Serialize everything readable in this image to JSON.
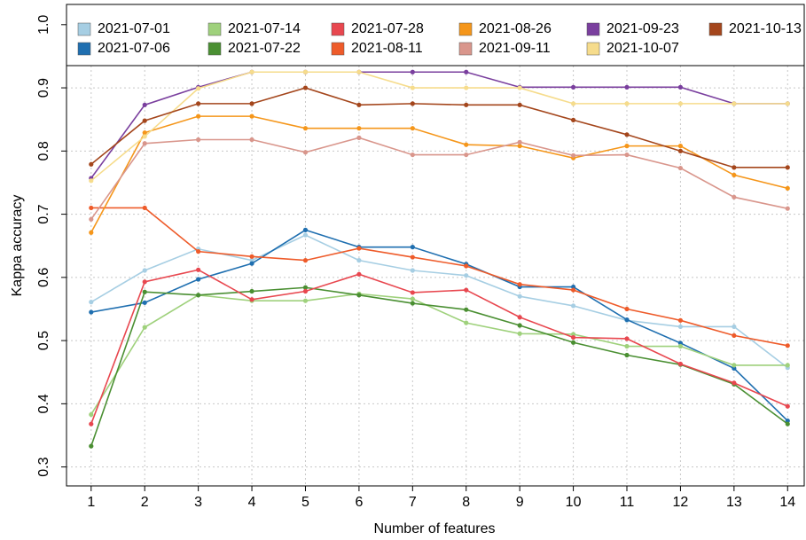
{
  "chart_data": {
    "type": "line",
    "x_label": "Number of features",
    "y_label": "Kappa accuracy",
    "x": [
      1,
      2,
      3,
      4,
      5,
      6,
      7,
      8,
      9,
      10,
      11,
      12,
      13,
      14
    ],
    "xlim": [
      0.54,
      14.31
    ],
    "ylim": [
      0.27,
      1.032
    ],
    "xticks": [
      1,
      2,
      3,
      4,
      5,
      6,
      7,
      8,
      9,
      10,
      11,
      12,
      13,
      14
    ],
    "yticks": [
      0.3,
      0.4,
      0.5,
      0.6,
      0.7,
      0.8,
      0.9,
      {
        "value": 1.0,
        "label": "1.0"
      }
    ],
    "grid": true,
    "legend_position": "top",
    "series": [
      {
        "name": "2021-07-01",
        "color": "#a6cee3",
        "values": [
          0.561,
          0.611,
          0.645,
          0.627,
          0.667,
          0.627,
          0.611,
          0.603,
          0.57,
          0.555,
          0.532,
          0.522,
          0.522,
          0.457
        ]
      },
      {
        "name": "2021-07-06",
        "color": "#1f6fb0",
        "values": [
          0.545,
          0.56,
          0.597,
          0.622,
          0.675,
          0.648,
          0.648,
          0.621,
          0.585,
          0.585,
          0.533,
          0.496,
          0.456,
          0.373
        ]
      },
      {
        "name": "2021-07-14",
        "color": "#9fd17c",
        "values": [
          0.383,
          0.521,
          0.572,
          0.563,
          0.563,
          0.574,
          0.566,
          0.528,
          0.511,
          0.51,
          0.491,
          0.491,
          0.461,
          0.461
        ]
      },
      {
        "name": "2021-07-22",
        "color": "#4a8f32",
        "values": [
          0.333,
          0.577,
          0.572,
          0.578,
          0.584,
          0.572,
          0.559,
          0.549,
          0.524,
          0.497,
          0.477,
          0.462,
          0.431,
          0.368
        ]
      },
      {
        "name": "2021-07-28",
        "color": "#e8474f",
        "values": [
          0.368,
          0.593,
          0.612,
          0.565,
          0.578,
          0.605,
          0.576,
          0.58,
          0.537,
          0.505,
          0.503,
          0.463,
          0.433,
          0.396
        ]
      },
      {
        "name": "2021-08-11",
        "color": "#ee5b2a",
        "values": [
          0.71,
          0.71,
          0.641,
          0.633,
          0.627,
          0.646,
          0.632,
          0.618,
          0.589,
          0.58,
          0.55,
          0.532,
          0.508,
          0.492
        ]
      },
      {
        "name": "2021-08-26",
        "color": "#f5961a",
        "values": [
          0.671,
          0.829,
          0.855,
          0.855,
          0.836,
          0.836,
          0.836,
          0.81,
          0.808,
          0.789,
          0.808,
          0.808,
          0.762,
          0.741
        ]
      },
      {
        "name": "2021-09-11",
        "color": "#d9968c",
        "values": [
          0.692,
          0.812,
          0.818,
          0.818,
          0.798,
          0.821,
          0.794,
          0.794,
          0.814,
          0.793,
          0.794,
          0.773,
          0.727,
          0.709
        ]
      },
      {
        "name": "2021-09-23",
        "color": "#7a3f9e",
        "values": [
          0.757,
          0.873,
          0.901,
          0.925,
          0.925,
          0.925,
          0.925,
          0.925,
          0.901,
          0.901,
          0.901,
          0.901,
          0.875,
          0.875
        ]
      },
      {
        "name": "2021-10-07",
        "color": "#f6dc8c",
        "values": [
          0.753,
          0.823,
          0.899,
          0.925,
          0.925,
          0.925,
          0.9,
          0.9,
          0.9,
          0.875,
          0.875,
          0.875,
          0.875,
          0.875
        ]
      },
      {
        "name": "2021-10-13",
        "color": "#a4461c",
        "values": [
          0.779,
          0.848,
          0.875,
          0.875,
          0.9,
          0.873,
          0.875,
          0.873,
          0.873,
          0.849,
          0.826,
          0.8,
          0.774,
          0.774
        ]
      }
    ]
  }
}
